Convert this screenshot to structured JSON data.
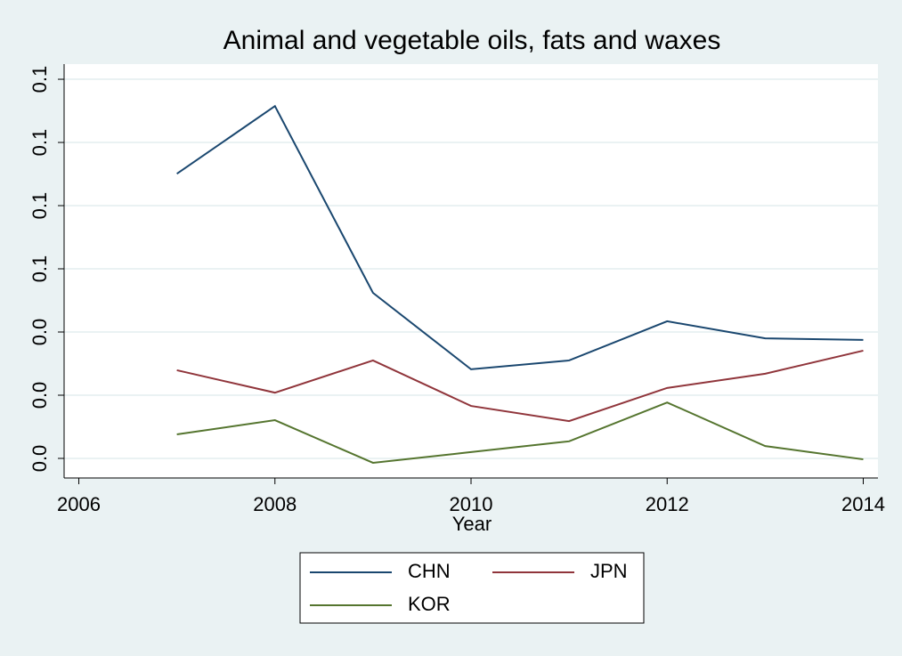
{
  "chart_data": {
    "type": "line",
    "title": "Animal and vegetable oils, fats and waxes",
    "x_label": "Year",
    "x": [
      2007,
      2008,
      2009,
      2010,
      2011,
      2012,
      2013,
      2014
    ],
    "series": [
      {
        "name": "CHN",
        "color": "#1a476f",
        "values": [
          0.0901,
          0.1115,
          0.0524,
          0.0282,
          0.031,
          0.0434,
          0.038,
          0.0375
        ]
      },
      {
        "name": "JPN",
        "color": "#90353b",
        "values": [
          0.0279,
          0.0208,
          0.031,
          0.0166,
          0.0118,
          0.0223,
          0.0268,
          0.0341
        ]
      },
      {
        "name": "KOR",
        "color": "#55752f",
        "values": [
          0.0076,
          0.0121,
          -0.0014,
          0.002,
          0.0054,
          0.0177,
          0.0039,
          -0.0003
        ]
      }
    ],
    "xlim": [
      2005.85,
      2014.15
    ],
    "xticks": [
      2006,
      2008,
      2010,
      2012,
      2014
    ],
    "ylim": [
      -0.0062,
      0.1248
    ],
    "yticks": [
      {
        "value": 0,
        "label": "0.0"
      },
      {
        "value": 0.02,
        "label": "0.0"
      },
      {
        "value": 0.04,
        "label": "0.0"
      },
      {
        "value": 0.06,
        "label": "0.1"
      },
      {
        "value": 0.08,
        "label": "0.1"
      },
      {
        "value": 0.1,
        "label": "0.1"
      },
      {
        "value": 0.12,
        "label": "0.1"
      }
    ],
    "grid": true
  }
}
